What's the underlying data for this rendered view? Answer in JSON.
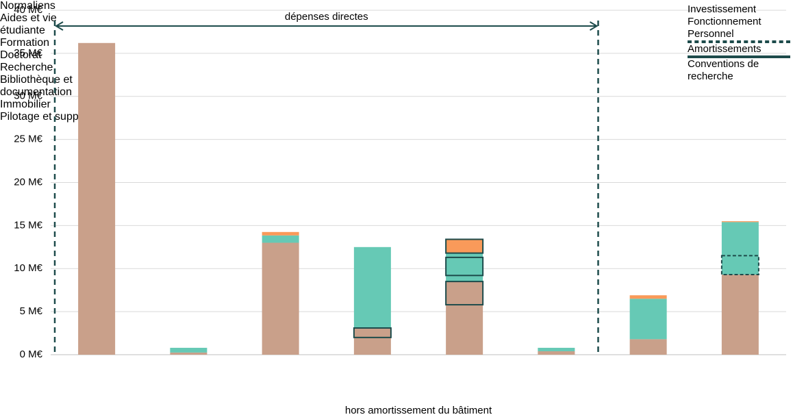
{
  "chart_data": {
    "type": "stacked_bar",
    "annotation": "dépenses directes",
    "x_label": "hors amortissement du bâtiment",
    "categories": [
      "Normaliens",
      "Aides et vie étudiante",
      "Formation",
      "Doctorat",
      "Recherche",
      "Bibliothèque et documentation",
      "Immobilier",
      "Pilotage et support"
    ],
    "series": [
      {
        "name": "Personnel",
        "color": "#c9a08a",
        "values": [
          36.2,
          0.25,
          13,
          3.1,
          8.5,
          0.4,
          1.8,
          9.3
        ]
      },
      {
        "name": "Fonctionnement",
        "color": "#66c9b5",
        "values": [
          0,
          0.55,
          0.85,
          9.4,
          3.3,
          0.4,
          4.7,
          6.1
        ]
      },
      {
        "name": "Investissement",
        "color": "#f99a5a",
        "values": [
          0,
          0,
          0.4,
          0,
          1.6,
          0,
          0.4,
          0.1
        ]
      }
    ],
    "boxes": [
      {
        "name": "Amortissements",
        "style": "dashed",
        "items": [
          {
            "category": 7,
            "low": 9.3,
            "high": 11.5
          }
        ]
      },
      {
        "name": "Conventions de recherche",
        "style": "solid",
        "items": [
          {
            "category": 3,
            "low": 2,
            "high": 3.1
          },
          {
            "category": 4,
            "low": 5.8,
            "high": 8.5
          },
          {
            "category": 4,
            "low": 9.2,
            "high": 11.3
          },
          {
            "category": 4,
            "low": 11.8,
            "high": 13.4
          }
        ]
      }
    ],
    "ylim": [
      0,
      40
    ],
    "yticks": [
      {
        "value": 0,
        "label": "0 M€"
      },
      {
        "value": 5,
        "label": "5 M€"
      },
      {
        "value": 10,
        "label": "10 M€"
      },
      {
        "value": 15,
        "label": "15 M€"
      },
      {
        "value": 20,
        "label": "20 M€"
      },
      {
        "value": 25,
        "label": "25 M€"
      },
      {
        "value": 30,
        "label": "30 M€"
      },
      {
        "value": 35,
        "label": "35 M€"
      },
      {
        "value": 40,
        "label": "40 M€"
      }
    ],
    "grid": true
  }
}
